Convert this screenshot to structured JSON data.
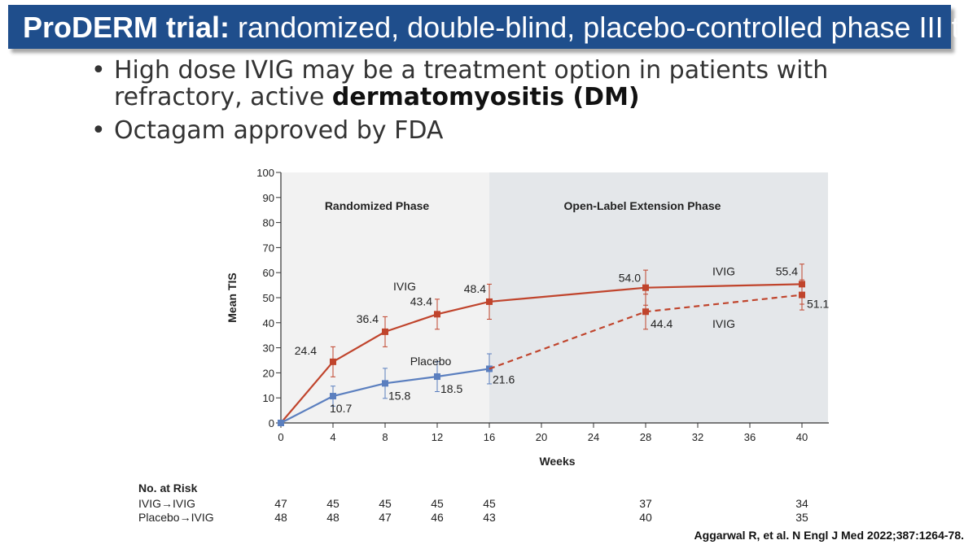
{
  "slide": {
    "title_bold": "ProDERM trial:",
    "title_rest": " randomized, double-blind, placebo-controlled phase III trial",
    "bullet1_a": "High dose IVIG may be a treatment option in patients with refractory, active ",
    "bullet1_b": "dermatomyositis (DM)",
    "bullet2": "Octagam approved by FDA",
    "citation": "Aggarwal R, et al. N Engl J Med 2022;387:1264-78."
  },
  "chart_data": {
    "type": "line",
    "ylabel": "Mean TIS",
    "xlabel": "Weeks",
    "ylim": [
      0,
      100
    ],
    "xlim": [
      0,
      42
    ],
    "yticks": [
      0,
      10,
      20,
      30,
      40,
      50,
      60,
      70,
      80,
      90,
      100
    ],
    "xticks": [
      0,
      4,
      8,
      12,
      16,
      20,
      24,
      28,
      32,
      36,
      40
    ],
    "phases": [
      {
        "label": "Randomized Phase",
        "from": 0,
        "to": 16,
        "color": "#f2f2f2"
      },
      {
        "label": "Open-Label Extension Phase",
        "from": 16,
        "to": 42,
        "color": "#e4e7ea"
      }
    ],
    "series": [
      {
        "name": "IVIG",
        "color": "#c0442c",
        "dashed": false,
        "x": [
          0,
          4,
          8,
          12,
          16,
          28,
          40
        ],
        "values": [
          0,
          24.4,
          36.4,
          43.4,
          48.4,
          54.0,
          55.4
        ],
        "labels": [
          "",
          "24.4",
          "36.4",
          "43.4",
          "48.4",
          "54.0",
          "55.4"
        ],
        "err": [
          0,
          6,
          6,
          6,
          7,
          7,
          8
        ]
      },
      {
        "name": "Placebo",
        "color": "#5b7fbf",
        "dashed": false,
        "x": [
          0,
          4,
          8,
          12,
          16
        ],
        "values": [
          0,
          10.7,
          15.8,
          18.5,
          21.6
        ],
        "labels": [
          "",
          "10.7",
          "15.8",
          "18.5",
          "21.6"
        ],
        "err": [
          0,
          4,
          6,
          6,
          6
        ]
      },
      {
        "name": "Placebo→IVIG",
        "color": "#c0442c",
        "dashed": true,
        "x": [
          16,
          28,
          40
        ],
        "values": [
          21.6,
          44.4,
          51.1
        ],
        "labels": [
          "",
          "44.4",
          "51.1"
        ],
        "err": [
          0,
          7,
          6
        ]
      }
    ],
    "annotations": [
      {
        "text": "IVIG",
        "x": 9.5,
        "y": 53
      },
      {
        "text": "Placebo",
        "x": 11.5,
        "y": 23
      },
      {
        "text": "IVIG",
        "x": 34,
        "y": 59
      },
      {
        "text": "IVIG",
        "x": 34,
        "y": 38
      }
    ]
  },
  "risk_table": {
    "title": "No. at Risk",
    "weeks": [
      0,
      4,
      8,
      12,
      16,
      28,
      40
    ],
    "rows": [
      {
        "label": "IVIG→IVIG",
        "values": [
          "47",
          "45",
          "45",
          "45",
          "45",
          "37",
          "34"
        ]
      },
      {
        "label": "Placebo→IVIG",
        "values": [
          "48",
          "48",
          "47",
          "46",
          "43",
          "40",
          "35"
        ]
      }
    ]
  }
}
